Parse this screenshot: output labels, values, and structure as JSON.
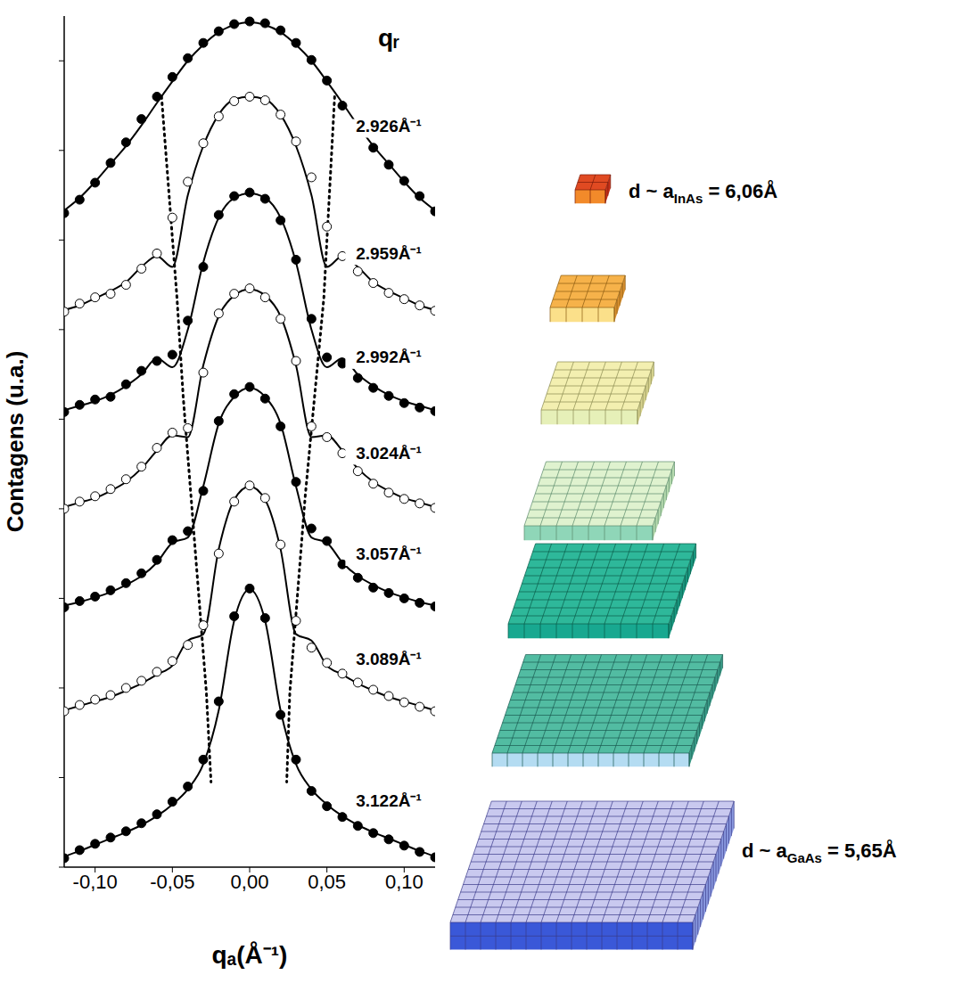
{
  "chart_data": {
    "type": "line",
    "x_label": "qₐ(Å⁻¹)",
    "y_label": "Contagens (u.a.)",
    "annotation": "qᵣ",
    "xlim": [
      -0.12,
      0.12
    ],
    "xticks": [
      {
        "value": -0.1,
        "label": "-0,10"
      },
      {
        "value": -0.05,
        "label": "-0,05"
      },
      {
        "value": 0,
        "label": "0,00"
      },
      {
        "value": 0.05,
        "label": "0,05"
      },
      {
        "value": 0.1,
        "label": "0,10"
      }
    ],
    "ylim": [
      0,
      95
    ],
    "yticks": [
      0,
      10,
      20,
      30,
      40,
      50,
      60,
      70,
      80,
      90
    ],
    "tick_labels": "x",
    "grid": false,
    "x": [
      -0.12,
      -0.11,
      -0.1,
      -0.09,
      -0.08,
      -0.07,
      -0.06,
      -0.05,
      -0.04,
      -0.03,
      -0.02,
      -0.01,
      0,
      0.01,
      0.02,
      0.03,
      0.04,
      0.05,
      0.06,
      0.07,
      0.08,
      0.09,
      0.1,
      0.11,
      0.12
    ],
    "series": [
      {
        "name": "2.926Å⁻¹",
        "color": "#000000",
        "marker": "filled_circle",
        "values": [
          73.0,
          74.5,
          76.4,
          78.6,
          80.9,
          83.5,
          86.0,
          88.2,
          90.3,
          92.0,
          93.3,
          94.1,
          94.4,
          94.2,
          93.4,
          92.0,
          90.1,
          87.8,
          85.0,
          82.5,
          80.3,
          78.4,
          76.6,
          74.9,
          73.2
        ],
        "fit": [
          73.3,
          74.7,
          76.5,
          78.5,
          80.5,
          82.8,
          85.3,
          87.7,
          90.0,
          91.8,
          93.2,
          94.0,
          94.3,
          94.0,
          93.2,
          91.8,
          90.0,
          87.7,
          85.3,
          82.8,
          80.5,
          78.5,
          76.5,
          74.7,
          73.3
        ]
      },
      {
        "name": "2.959Å⁻¹",
        "color": "#000000",
        "marker": "open_circle",
        "values": [
          62.0,
          62.9,
          63.6,
          64.0,
          65.0,
          66.8,
          68.5,
          72.5,
          76.5,
          80.8,
          83.8,
          85.5,
          86.0,
          85.6,
          84.0,
          81.0,
          77.0,
          71.5,
          68.2,
          66.5,
          65.2,
          64.1,
          63.4,
          62.7,
          62.1
        ],
        "fit": [
          62.2,
          62.7,
          63.5,
          64.3,
          65.3,
          67.0,
          68.2,
          67.0,
          75.0,
          80.5,
          84.0,
          85.7,
          86.0,
          85.7,
          84.0,
          80.5,
          75.0,
          67.0,
          68.2,
          67.0,
          65.3,
          64.3,
          63.5,
          62.7,
          62.2
        ]
      },
      {
        "name": "2.992Å⁻¹",
        "color": "#000000",
        "marker": "filled_circle",
        "values": [
          50.8,
          51.6,
          52.2,
          52.5,
          53.9,
          55.4,
          56.5,
          57.2,
          61.0,
          67.0,
          72.8,
          74.9,
          75.3,
          74.6,
          72.2,
          67.8,
          61.2,
          56.9,
          56.2,
          54.6,
          53.5,
          52.6,
          51.8,
          51.3,
          50.9
        ],
        "fit": [
          51.0,
          51.5,
          52.0,
          52.7,
          53.7,
          55.0,
          56.8,
          55.8,
          60.0,
          67.5,
          72.5,
          74.7,
          75.2,
          74.7,
          72.5,
          67.5,
          60.0,
          55.8,
          56.8,
          55.0,
          53.7,
          52.7,
          52.0,
          51.5,
          51.0
        ]
      },
      {
        "name": "3.024Å⁻¹",
        "color": "#000000",
        "marker": "open_circle",
        "values": [
          40.0,
          40.8,
          41.4,
          42.2,
          43.3,
          44.7,
          46.8,
          48.5,
          49.0,
          55.2,
          61.8,
          64.0,
          64.6,
          63.6,
          61.2,
          56.5,
          49.2,
          48.0,
          46.2,
          44.2,
          42.8,
          41.8,
          41.1,
          40.6,
          40.1
        ],
        "fit": [
          40.2,
          40.7,
          41.2,
          42.0,
          43.0,
          44.5,
          46.5,
          48.2,
          48.0,
          56.0,
          61.5,
          63.8,
          64.5,
          63.8,
          61.5,
          56.0,
          48.0,
          48.2,
          46.5,
          44.5,
          43.0,
          42.0,
          41.2,
          40.7,
          40.2
        ]
      },
      {
        "name": "3.057Å⁻¹",
        "color": "#000000",
        "marker": "filled_circle",
        "values": [
          29.0,
          29.7,
          30.2,
          30.9,
          31.7,
          32.8,
          34.3,
          36.5,
          37.5,
          42.0,
          49.8,
          52.8,
          53.6,
          52.3,
          49.2,
          43.0,
          37.8,
          36.4,
          33.8,
          32.3,
          31.2,
          30.6,
          30.0,
          29.5,
          29.1
        ],
        "fit": [
          29.2,
          29.6,
          30.1,
          30.7,
          31.5,
          32.5,
          34.0,
          36.2,
          36.8,
          42.5,
          49.5,
          52.5,
          53.5,
          52.5,
          49.5,
          42.5,
          36.8,
          36.2,
          34.0,
          32.5,
          31.5,
          30.7,
          30.1,
          29.6,
          29.2
        ]
      },
      {
        "name": "3.089Å⁻¹",
        "color": "#000000",
        "marker": "open_circle",
        "values": [
          17.4,
          18.1,
          18.7,
          19.2,
          20.0,
          20.8,
          21.8,
          23.0,
          24.8,
          27.0,
          35.0,
          40.8,
          42.6,
          41.2,
          36.0,
          27.5,
          24.5,
          22.8,
          21.6,
          20.6,
          19.8,
          19.1,
          18.4,
          17.9,
          17.4
        ],
        "fit": [
          17.5,
          18.0,
          18.5,
          19.0,
          19.7,
          20.5,
          21.5,
          22.5,
          25.3,
          26.0,
          35.5,
          41.0,
          42.5,
          41.0,
          35.5,
          26.0,
          25.3,
          22.5,
          21.5,
          20.5,
          19.7,
          19.0,
          18.5,
          18.0,
          17.5
        ]
      },
      {
        "name": "3.122Å⁻¹",
        "color": "#000000",
        "marker": "filled_circle",
        "values": [
          1.0,
          1.9,
          2.6,
          3.3,
          4.0,
          4.9,
          5.9,
          7.3,
          9.0,
          12.0,
          18.5,
          28.0,
          31.1,
          27.8,
          17.0,
          12.0,
          8.5,
          6.8,
          5.6,
          4.6,
          3.8,
          3.1,
          2.4,
          1.7,
          1.1
        ],
        "fit": [
          1.2,
          1.8,
          2.5,
          3.2,
          3.9,
          4.7,
          5.7,
          7.0,
          8.7,
          11.5,
          17.5,
          27.5,
          31.0,
          27.5,
          17.5,
          11.5,
          8.7,
          7.0,
          5.7,
          4.7,
          3.9,
          3.2,
          2.5,
          1.8,
          1.2
        ]
      }
    ],
    "guides": [
      {
        "line_style": "dotted",
        "x": [
          -0.057,
          -0.047,
          -0.043,
          -0.038,
          -0.033,
          -0.028,
          -0.025
        ],
        "values": [
          86.0,
          63.5,
          52.5,
          41.5,
          30.5,
          19.5,
          9.5
        ]
      },
      {
        "line_style": "dotted",
        "x": [
          0.055,
          0.048,
          0.042,
          0.036,
          0.031,
          0.026,
          0.024
        ],
        "values": [
          86.0,
          63.5,
          52.5,
          41.5,
          30.5,
          19.5,
          9.5
        ]
      }
    ]
  },
  "diagram": {
    "top_label": {
      "prefix": "d ~ a",
      "subscript": "InAs",
      "suffix": " = 6,06Å"
    },
    "bottom_label": {
      "prefix": "d ~ a",
      "subscript": "GaAs",
      "suffix": " = 5,65Å"
    }
  }
}
